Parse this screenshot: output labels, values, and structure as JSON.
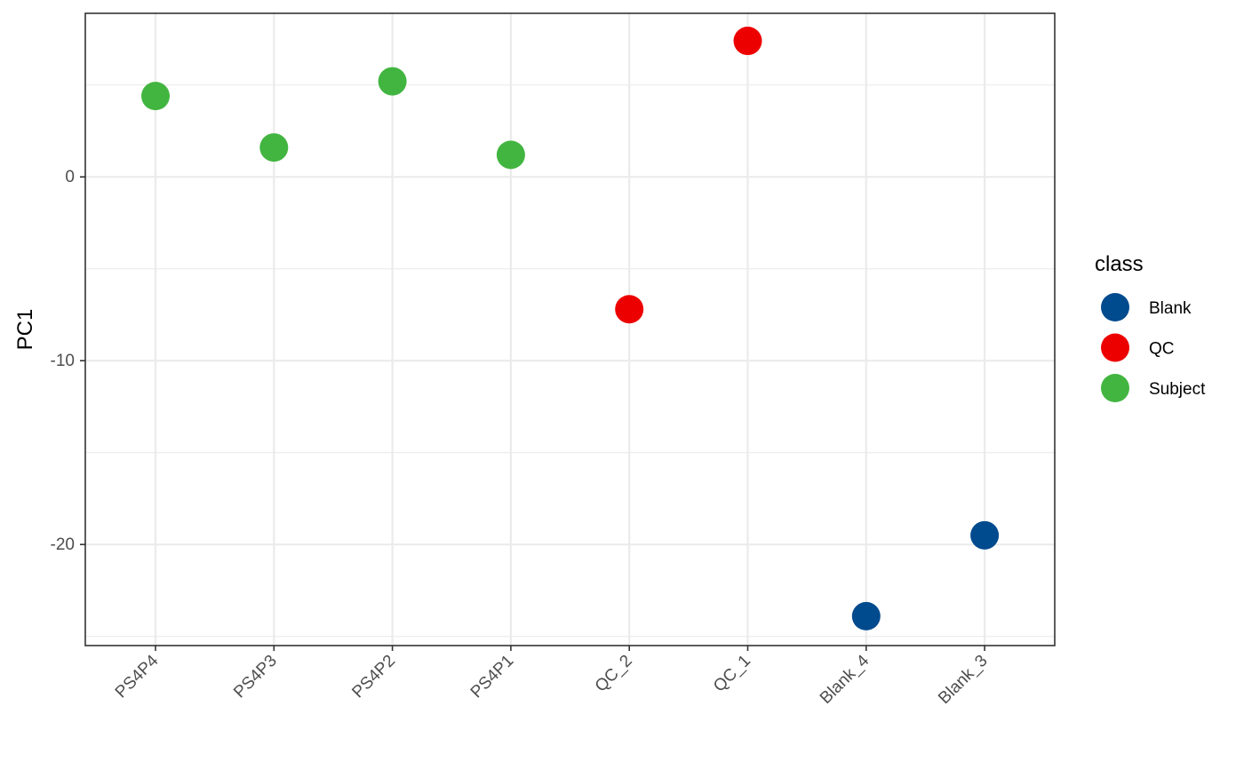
{
  "chart_data": {
    "type": "scatter",
    "title": "",
    "xlabel": "",
    "ylabel": "PC1",
    "categories": [
      "PS4P4",
      "PS4P3",
      "PS4P2",
      "PS4P1",
      "QC_2",
      "QC_1",
      "Blank_4",
      "Blank_3"
    ],
    "yticks": [
      0,
      -10,
      -20
    ],
    "ylim": [
      -25.5,
      8.9
    ],
    "grid": true,
    "legend": {
      "title": "class",
      "position": "right",
      "entries": [
        {
          "name": "Blank",
          "color": "#004A8E"
        },
        {
          "name": "QC",
          "color": "#ED0000"
        },
        {
          "name": "Subject",
          "color": "#42B540"
        }
      ]
    },
    "points": [
      {
        "x": "PS4P4",
        "y": 4.4,
        "class": "Subject"
      },
      {
        "x": "PS4P3",
        "y": 1.6,
        "class": "Subject"
      },
      {
        "x": "PS4P2",
        "y": 5.2,
        "class": "Subject"
      },
      {
        "x": "PS4P1",
        "y": 1.2,
        "class": "Subject"
      },
      {
        "x": "QC_2",
        "y": -7.2,
        "class": "QC"
      },
      {
        "x": "QC_1",
        "y": 7.4,
        "class": "QC"
      },
      {
        "x": "Blank_4",
        "y": -23.9,
        "class": "Blank"
      },
      {
        "x": "Blank_3",
        "y": -19.5,
        "class": "Blank"
      }
    ]
  }
}
